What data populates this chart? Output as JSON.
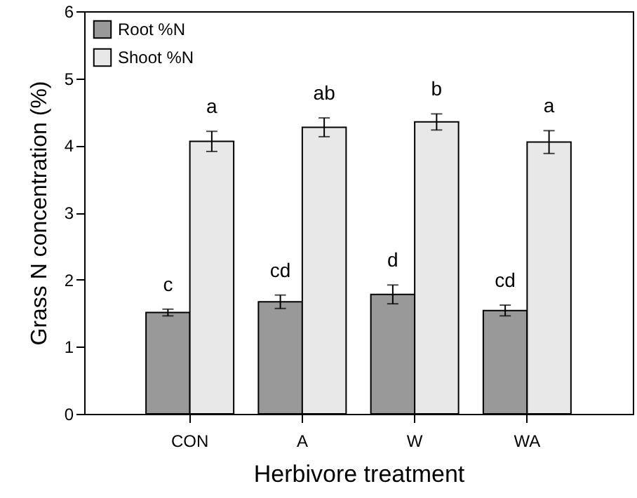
{
  "chart_data": {
    "type": "bar",
    "xlabel": "Herbivore treatment",
    "ylabel": "Grass N concentration (%)",
    "categories": [
      "CON",
      "A",
      "W",
      "WA"
    ],
    "series": [
      {
        "name": "Root %N",
        "color": "#999999",
        "values": [
          1.51,
          1.67,
          1.78,
          1.54
        ],
        "errors": [
          0.05,
          0.1,
          0.14,
          0.08
        ],
        "value_labels": [
          "c",
          "cd",
          "d",
          "cd"
        ]
      },
      {
        "name": "Shoot %N",
        "color": "#e8e8e8",
        "values": [
          4.06,
          4.27,
          4.35,
          4.05
        ],
        "errors": [
          0.15,
          0.14,
          0.12,
          0.17
        ],
        "value_labels": [
          "a",
          "ab",
          "b",
          "a"
        ]
      }
    ],
    "ylim": [
      0,
      6
    ],
    "yticks": [
      0,
      1,
      2,
      3,
      4,
      5,
      6
    ],
    "legend": "top left",
    "grid": false
  }
}
